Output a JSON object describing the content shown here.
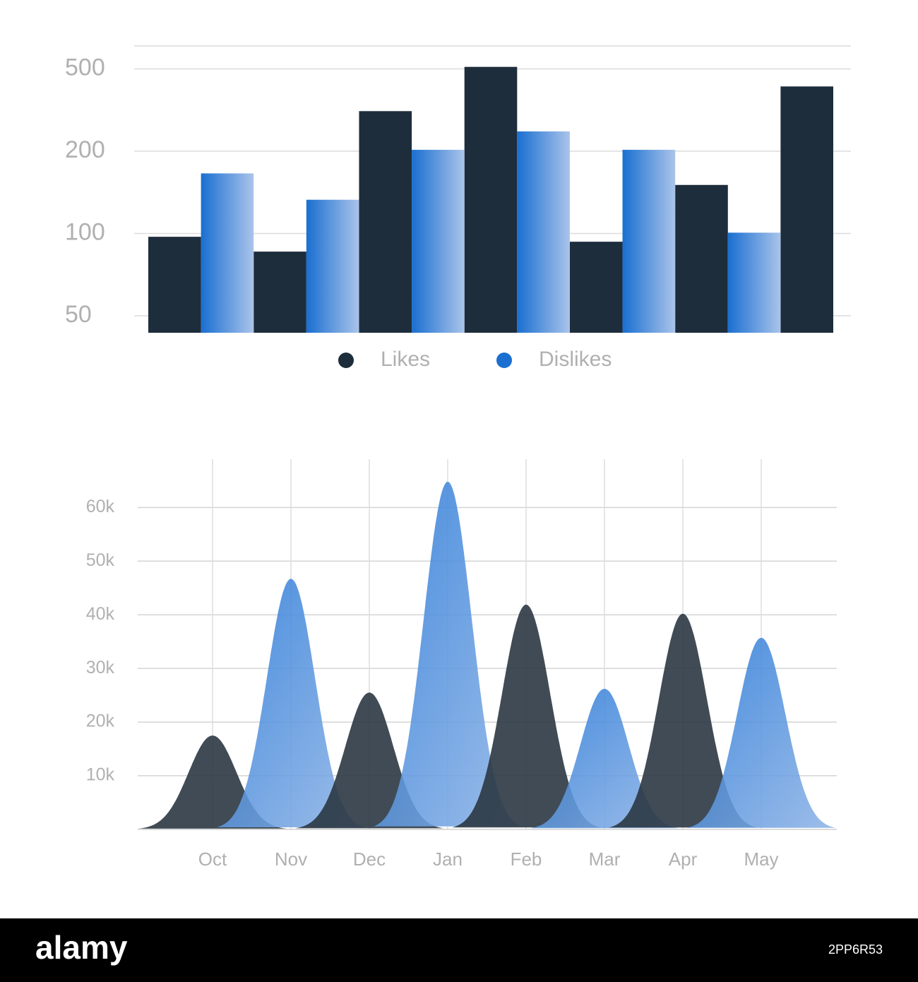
{
  "chart_data": [
    {
      "type": "bar",
      "categories": [
        null,
        null,
        null,
        null,
        null,
        null,
        null
      ],
      "series": [
        {
          "name": "Likes",
          "color": "#1e2d3b",
          "values": [
            98,
            89,
            346,
            507,
            95,
            159,
            436
          ]
        },
        {
          "name": "Dislikes",
          "color": "#1a6fd1",
          "values": [
            173,
            141,
            205,
            272,
            205,
            101,
            null
          ]
        }
      ],
      "ylim": [
        40,
        580
      ],
      "yticks": [
        50,
        100,
        200,
        500
      ],
      "grid": true,
      "legend": "bottom"
    },
    {
      "type": "area",
      "categories": [
        "Oct",
        "Nov",
        "Dec",
        "Jan",
        "Feb",
        "Mar",
        "Apr",
        "May"
      ],
      "values": [
        17500,
        46700,
        25500,
        64800,
        41900,
        26200,
        40200,
        35700
      ],
      "colors": [
        "#2b3743",
        "#3f86d8",
        "#2b3743",
        "#3f86d8",
        "#2b3743",
        "#3f86d8",
        "#2b3743",
        "#1f74d4"
      ],
      "ylim": [
        0,
        69000
      ],
      "yticks": [
        {
          "value": 10000,
          "label": "10k"
        },
        {
          "value": 20000,
          "label": "20k"
        },
        {
          "value": 30000,
          "label": "30k"
        },
        {
          "value": 40000,
          "label": "40k"
        },
        {
          "value": 50000,
          "label": "50k"
        },
        {
          "value": 60000,
          "label": "60k"
        }
      ],
      "grid": true
    }
  ],
  "footer": {
    "brand": "alamy",
    "image_id": "2PP6R53"
  }
}
